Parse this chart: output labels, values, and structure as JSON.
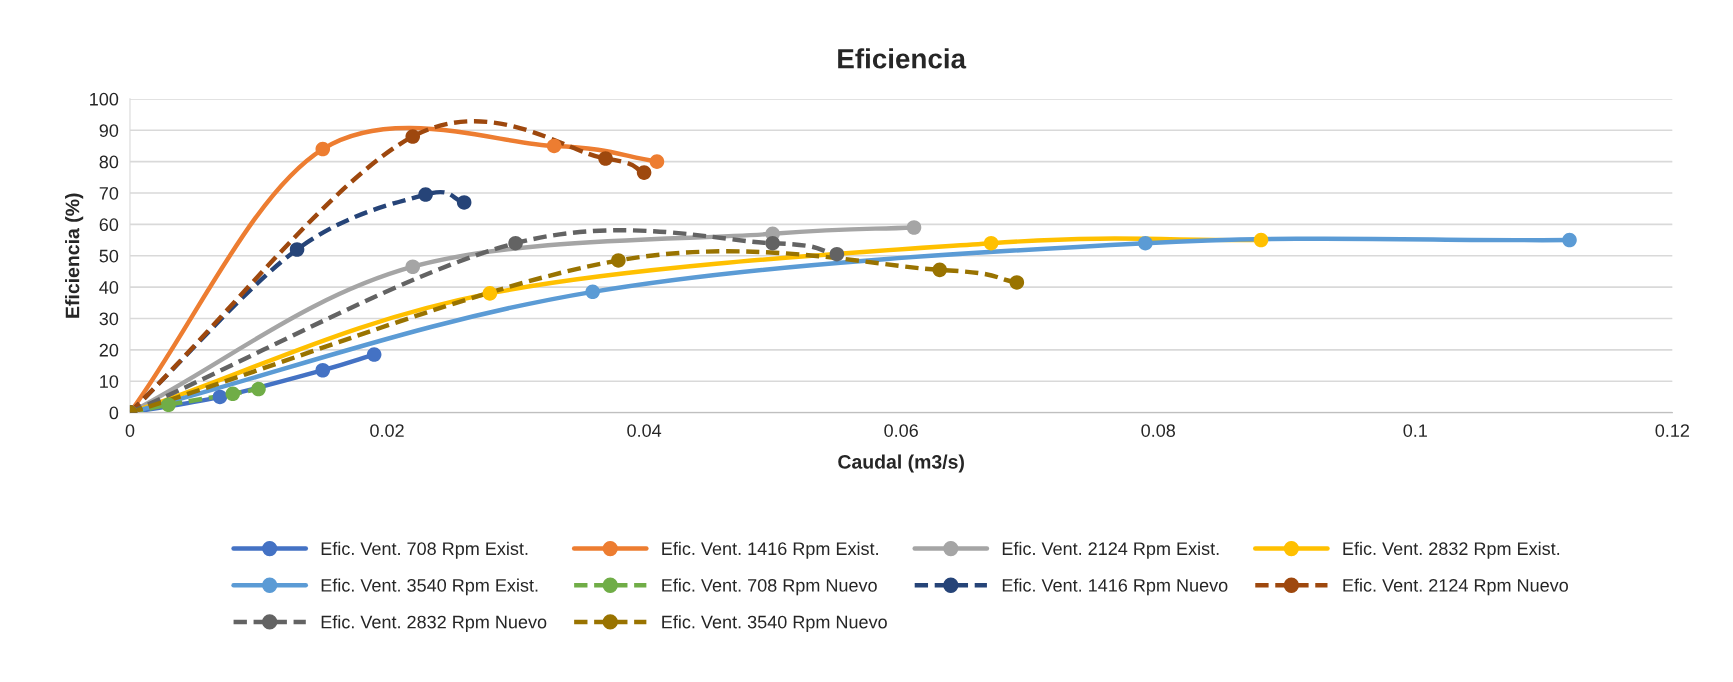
{
  "chart_data": {
    "type": "line",
    "title": "Eficiencia",
    "xlabel": "Caudal (m3/s)",
    "ylabel": "Eficiencia (%)",
    "xlim": [
      0,
      0.12
    ],
    "xticks": [
      0,
      0.02,
      0.04,
      0.06,
      0.08,
      0.1,
      0.12
    ],
    "ylim": [
      0,
      100
    ],
    "yticks": [
      0,
      10,
      20,
      30,
      40,
      50,
      60,
      70,
      80,
      90,
      100
    ],
    "grid": "y",
    "legend": "bottom",
    "marker": "circle",
    "series": [
      {
        "name": "Efic. Vent. 708 Rpm Exist.",
        "color": "#4472c4",
        "line_style": "solid",
        "x": [
          0,
          0.007,
          0.015,
          0.019
        ],
        "values": [
          0,
          5,
          13.5,
          18.5
        ]
      },
      {
        "name": "Efic. Vent. 1416 Rpm Exist.",
        "color": "#ed7d31",
        "line_style": "solid",
        "x": [
          0,
          0.015,
          0.033,
          0.041
        ],
        "values": [
          0,
          84,
          85,
          80
        ]
      },
      {
        "name": "Efic. Vent. 2124 Rpm Exist.",
        "color": "#a5a5a5",
        "line_style": "solid",
        "x": [
          0,
          0.022,
          0.05,
          0.061
        ],
        "values": [
          0,
          46.5,
          57,
          59
        ]
      },
      {
        "name": "Efic. Vent. 2832 Rpm Exist.",
        "color": "#ffc000",
        "line_style": "solid",
        "x": [
          0,
          0.028,
          0.067,
          0.088
        ],
        "values": [
          0,
          38,
          54,
          55
        ]
      },
      {
        "name": "Efic. Vent. 3540 Rpm Exist.",
        "color": "#5b9bd5",
        "line_style": "solid",
        "x": [
          0,
          0.036,
          0.079,
          0.112
        ],
        "values": [
          0,
          38.5,
          54,
          55
        ]
      },
      {
        "name": "Efic. Vent. 708 Rpm Nuevo",
        "color": "#70ad47",
        "line_style": "dashed",
        "x": [
          0,
          0.003,
          0.008,
          0.01
        ],
        "values": [
          0,
          2.5,
          6,
          7.5
        ]
      },
      {
        "name": "Efic. Vent. 1416 Rpm Nuevo",
        "color": "#264478",
        "line_style": "dashed",
        "x": [
          0,
          0.013,
          0.023,
          0.026
        ],
        "values": [
          0,
          52,
          69.5,
          67
        ]
      },
      {
        "name": "Efic. Vent. 2124 Rpm Nuevo",
        "color": "#9e480e",
        "line_style": "dashed",
        "x": [
          0,
          0.022,
          0.037,
          0.04
        ],
        "values": [
          0,
          88,
          81,
          76.5
        ]
      },
      {
        "name": "Efic. Vent. 2832 Rpm Nuevo",
        "color": "#636363",
        "line_style": "dashed",
        "x": [
          0,
          0.03,
          0.05,
          0.055
        ],
        "values": [
          0,
          54,
          54,
          50.5
        ]
      },
      {
        "name": "Efic. Vent. 3540 Rpm Nuevo",
        "color": "#997300",
        "line_style": "dashed",
        "x": [
          0,
          0.038,
          0.063,
          0.069
        ],
        "values": [
          0,
          48.5,
          45.5,
          41.5
        ]
      }
    ]
  }
}
